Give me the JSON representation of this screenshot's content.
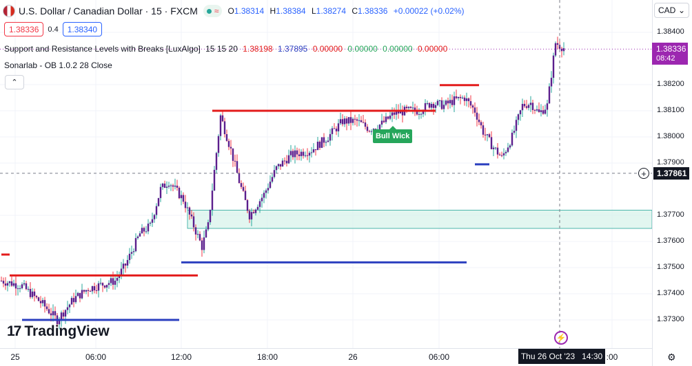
{
  "header": {
    "symbol": "U.S. Dollar / Canadian Dollar · 15 · FXCM",
    "status_wave": "≈",
    "open_label": "O",
    "open": "1.38314",
    "high_label": "H",
    "high": "1.38384",
    "low_label": "L",
    "low": "1.38274",
    "close_label": "C",
    "close": "1.38336",
    "change": "+0.00022 (+0.02%)"
  },
  "trade": {
    "sell_price": "1.38336",
    "spread": "0.4",
    "buy_price": "1.38340"
  },
  "indicators": [
    {
      "name": "Support and Resistance Levels with Breaks [LuxAlgo]",
      "params": "15 15 20",
      "values": [
        "1.38198",
        "1.37895",
        "0.00000",
        "0.00000",
        "0.00000",
        "0.00000"
      ]
    },
    {
      "name": "Sonarlab - OB 1.0.2 28 Close"
    }
  ],
  "collapse_icon": "chevron-up-icon",
  "collapse_glyph": "⌃",
  "currency": {
    "label": "CAD",
    "caret": "⌄"
  },
  "price_axis": {
    "ticks": [
      "1.38400",
      "1.38200",
      "1.38100",
      "1.38000",
      "1.37900",
      "1.37700",
      "1.37600",
      "1.37500",
      "1.37400",
      "1.37300"
    ],
    "last_price": "1.38336",
    "countdown": "08:42",
    "crosshair_price": "1.37861",
    "crosshair_plus": "+"
  },
  "time_axis": {
    "ticks": [
      "25",
      "06:00",
      "12:00",
      "18:00",
      "26",
      "06:00",
      ":00"
    ],
    "crosshair_date": "Thu 26 Oct '23",
    "crosshair_time": "14:30"
  },
  "annotations": {
    "bull_wick": "Bull Wick"
  },
  "branding": {
    "logo_mark": "17",
    "logo_text": "TradingView"
  },
  "lightning_glyph": "⚡",
  "settings_glyph": "⚙",
  "colors": {
    "bull": "#26a69a",
    "bear": "#f23645",
    "candle_body": "#5b1e8c",
    "resistance": "#e31b1b",
    "support": "#2b3fbf",
    "order_block": "#d6f2ea",
    "last_price_bg": "#9c27b0"
  },
  "chart_data": {
    "type": "candlestick",
    "title": "U.S. Dollar / Canadian Dollar · 15 · FXCM",
    "y_range": [
      1.3725,
      1.3845
    ],
    "price_ticks": [
      1.384,
      1.382,
      1.381,
      1.38,
      1.379,
      1.377,
      1.376,
      1.375,
      1.374,
      1.373
    ],
    "x_labels": [
      "25",
      "06:00",
      "12:00",
      "18:00",
      "26",
      "06:00",
      ":00"
    ],
    "close_path": [
      [
        0,
        1.3745
      ],
      [
        10,
        1.3743
      ],
      [
        20,
        1.3736
      ],
      [
        27,
        1.373
      ],
      [
        35,
        1.3738
      ],
      [
        42,
        1.3742
      ],
      [
        55,
        1.3745
      ],
      [
        60,
        1.3751
      ],
      [
        67,
        1.3763
      ],
      [
        72,
        1.3766
      ],
      [
        77,
        1.378
      ],
      [
        81,
        1.3783
      ],
      [
        88,
        1.3776
      ],
      [
        92,
        1.3768
      ],
      [
        97,
        1.3758
      ],
      [
        100,
        1.3766
      ],
      [
        106,
        1.3808
      ],
      [
        111,
        1.3795
      ],
      [
        115,
        1.3783
      ],
      [
        120,
        1.377
      ],
      [
        127,
        1.3778
      ],
      [
        133,
        1.3788
      ],
      [
        140,
        1.3793
      ],
      [
        150,
        1.3795
      ],
      [
        158,
        1.38
      ],
      [
        165,
        1.3806
      ],
      [
        172,
        1.3806
      ],
      [
        178,
        1.3803
      ],
      [
        184,
        1.3805
      ],
      [
        190,
        1.3809
      ],
      [
        196,
        1.381
      ],
      [
        202,
        1.381
      ],
      [
        208,
        1.3813
      ],
      [
        214,
        1.3812
      ],
      [
        219,
        1.3814
      ],
      [
        224,
        1.3815
      ],
      [
        229,
        1.381
      ],
      [
        233,
        1.3802
      ],
      [
        237,
        1.3797
      ],
      [
        242,
        1.3792
      ],
      [
        247,
        1.38
      ],
      [
        252,
        1.3812
      ],
      [
        256,
        1.3813
      ],
      [
        260,
        1.3809
      ],
      [
        264,
        1.3812
      ],
      [
        268,
        1.3836
      ],
      [
        272,
        1.3834
      ]
    ],
    "levels": [
      {
        "kind": "resistance",
        "price": 1.38198,
        "from_bar": 212,
        "to_bar": 231
      },
      {
        "kind": "resistance",
        "price": 1.381,
        "from_bar": 102,
        "to_bar": 210
      },
      {
        "kind": "resistance",
        "price": 1.3747,
        "from_bar": 4,
        "to_bar": 95
      },
      {
        "kind": "resistance",
        "price": 1.3755,
        "from_bar": 0,
        "to_bar": 4
      },
      {
        "kind": "support",
        "price": 1.37895,
        "from_bar": 229,
        "to_bar": 236
      },
      {
        "kind": "support",
        "price": 1.3752,
        "from_bar": 87,
        "to_bar": 225
      },
      {
        "kind": "support",
        "price": 1.373,
        "from_bar": 10,
        "to_bar": 86
      }
    ],
    "order_block": {
      "top": 1.3772,
      "bottom": 1.3765,
      "from_bar": 90
    },
    "crosshair": {
      "price": 1.37861,
      "bar": 260
    },
    "last_price": 1.38336
  }
}
